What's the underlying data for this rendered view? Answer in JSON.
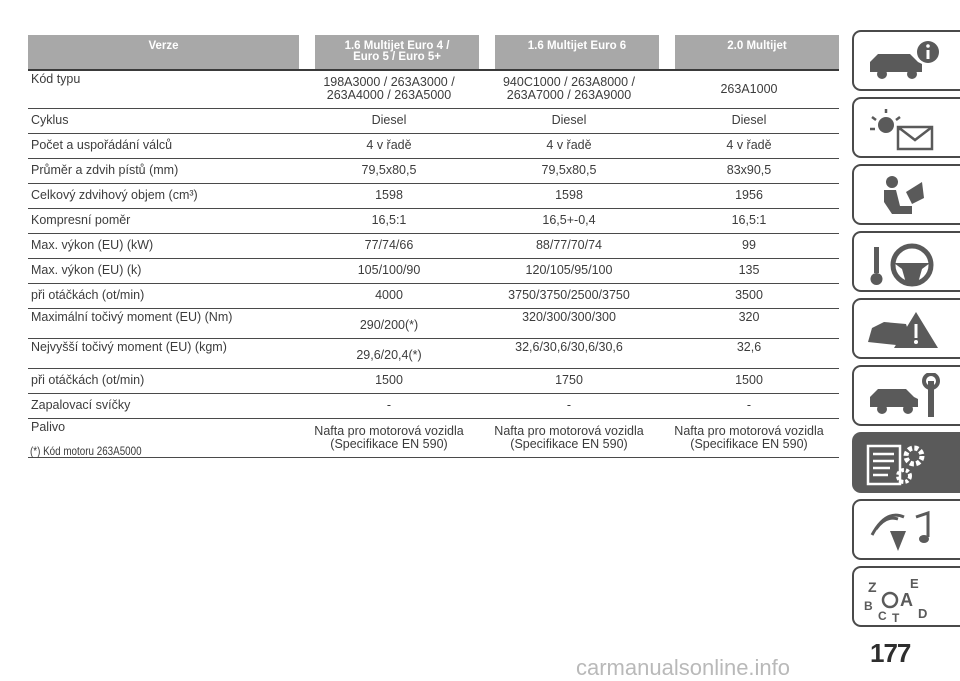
{
  "table": {
    "headers": [
      "Verze",
      "1.6 Multijet Euro 4 / Euro 5 / Euro 5+",
      "1.6 Multijet Euro 6",
      "2.0 Multijet"
    ],
    "header_lines": [
      [
        "Verze"
      ],
      [
        "1.6 Multijet Euro 4 /",
        "Euro 5 / Euro 5+"
      ],
      [
        "1.6 Multijet Euro 6"
      ],
      [
        "2.0 Multijet"
      ]
    ],
    "rows": [
      {
        "label": "Kód typu",
        "values": [
          [
            "198A3000 / 263A3000 /",
            "263A4000 / 263A5000"
          ],
          [
            "940C1000 / 263A8000 /",
            "263A7000 / 263A9000"
          ],
          [
            "263A1000"
          ]
        ]
      },
      {
        "label": "Cyklus",
        "values": [
          [
            "Diesel"
          ],
          [
            "Diesel"
          ],
          [
            "Diesel"
          ]
        ]
      },
      {
        "label": "Počet a uspořádání válců",
        "values": [
          [
            "4 v řadě"
          ],
          [
            "4 v řadě"
          ],
          [
            "4 v řadě"
          ]
        ]
      },
      {
        "label": "Průměr a zdvih pístů (mm)",
        "values": [
          [
            "79,5x80,5"
          ],
          [
            "79,5x80,5"
          ],
          [
            "83x90,5"
          ]
        ]
      },
      {
        "label": "Celkový zdvihový objem (cm³)",
        "values": [
          [
            "1598"
          ],
          [
            "1598"
          ],
          [
            "1956"
          ]
        ]
      },
      {
        "label": "Kompresní poměr",
        "values": [
          [
            "16,5:1"
          ],
          [
            "16,5+-0,4"
          ],
          [
            "16,5:1"
          ]
        ]
      },
      {
        "label": "Max. výkon (EU) (kW)",
        "values": [
          [
            "77/74/66"
          ],
          [
            "88/77/70/74"
          ],
          [
            "99"
          ]
        ]
      },
      {
        "label": "Max. výkon (EU) (k)",
        "values": [
          [
            "105/100/90"
          ],
          [
            "120/105/95/100"
          ],
          [
            "135"
          ]
        ]
      },
      {
        "label": "při otáčkách (ot/min)",
        "values": [
          [
            "4000"
          ],
          [
            "3750/3750/2500/3750"
          ],
          [
            "3500"
          ]
        ]
      },
      {
        "label": "Maximální točivý moment (EU) (Nm)",
        "values": [
          [
            "290/200(*)"
          ],
          [
            "320/300/300/300"
          ],
          [
            "320"
          ]
        ]
      },
      {
        "label": "Nejvyšší točivý moment (EU) (kgm)",
        "values": [
          [
            "29,6/20,4(*)"
          ],
          [
            "32,6/30,6/30,6/30,6"
          ],
          [
            "32,6"
          ]
        ]
      },
      {
        "label": "při otáčkách (ot/min)",
        "values": [
          [
            "1500"
          ],
          [
            "1750"
          ],
          [
            "1500"
          ]
        ]
      },
      {
        "label": "Zapalovací svíčky",
        "values": [
          [
            "-"
          ],
          [
            "-"
          ],
          [
            "-"
          ]
        ]
      },
      {
        "label": "Palivo",
        "values": [
          [
            "Nafta pro motorová vozidla",
            "(Specifikace EN 590)"
          ],
          [
            "Nafta pro motorová vozidla",
            "(Specifikace EN 590)"
          ],
          [
            "Nafta pro motorová vozidla",
            "(Specifikace EN 590)"
          ]
        ]
      }
    ]
  },
  "footnote": "(*) Kód motoru 263A5000",
  "sidebar": {
    "tabs": [
      {
        "icon": "car-info-icon",
        "active": false
      },
      {
        "icon": "warning-light-envelope-icon",
        "active": false
      },
      {
        "icon": "seat-airbag-icon",
        "active": false
      },
      {
        "icon": "key-steering-wheel-icon",
        "active": false
      },
      {
        "icon": "car-crash-warning-icon",
        "active": false
      },
      {
        "icon": "car-wrench-icon",
        "active": false
      },
      {
        "icon": "specs-gear-icon",
        "active": true
      },
      {
        "icon": "radio-music-icon",
        "active": false
      },
      {
        "icon": "alphabet-index-icon",
        "active": false
      }
    ]
  },
  "page_number": "177",
  "watermark": "carmanualsonline.info",
  "colors": {
    "header_bg": "#a8a8a8",
    "active_tab": "#5a5a5a",
    "tab_border": "#4a4a4a"
  }
}
